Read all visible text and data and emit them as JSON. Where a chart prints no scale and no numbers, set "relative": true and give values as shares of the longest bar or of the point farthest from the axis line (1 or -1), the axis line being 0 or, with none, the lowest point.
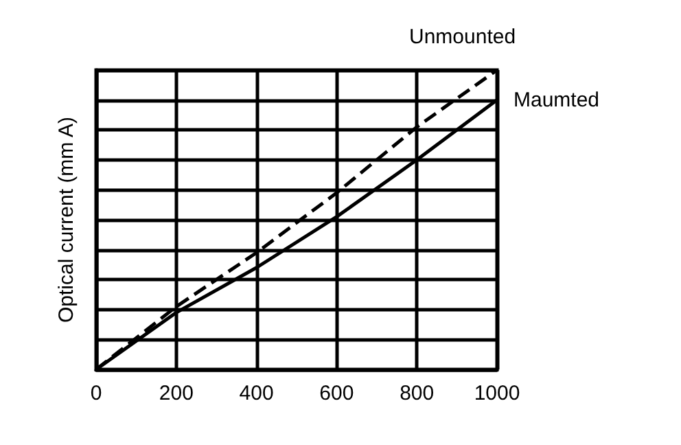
{
  "chart_data": {
    "type": "line",
    "relative": true,
    "ylabel": "Optical current (mm A)",
    "x": [
      0,
      200,
      400,
      600,
      800,
      1000
    ],
    "xlim": [
      0,
      1000
    ],
    "xticks": [
      0,
      200,
      400,
      600,
      800,
      1000
    ],
    "grid": true,
    "legend": false,
    "series": [
      {
        "name": "Unmounted",
        "color": "#000000",
        "line_style": "dashed",
        "values": [
          0,
          0.21,
          0.39,
          0.59,
          0.81,
          1.0
        ]
      },
      {
        "name": "Maumted",
        "color": "#000000",
        "line_style": "solid",
        "values": [
          0,
          0.19,
          0.34,
          0.51,
          0.7,
          0.9
        ]
      }
    ]
  }
}
